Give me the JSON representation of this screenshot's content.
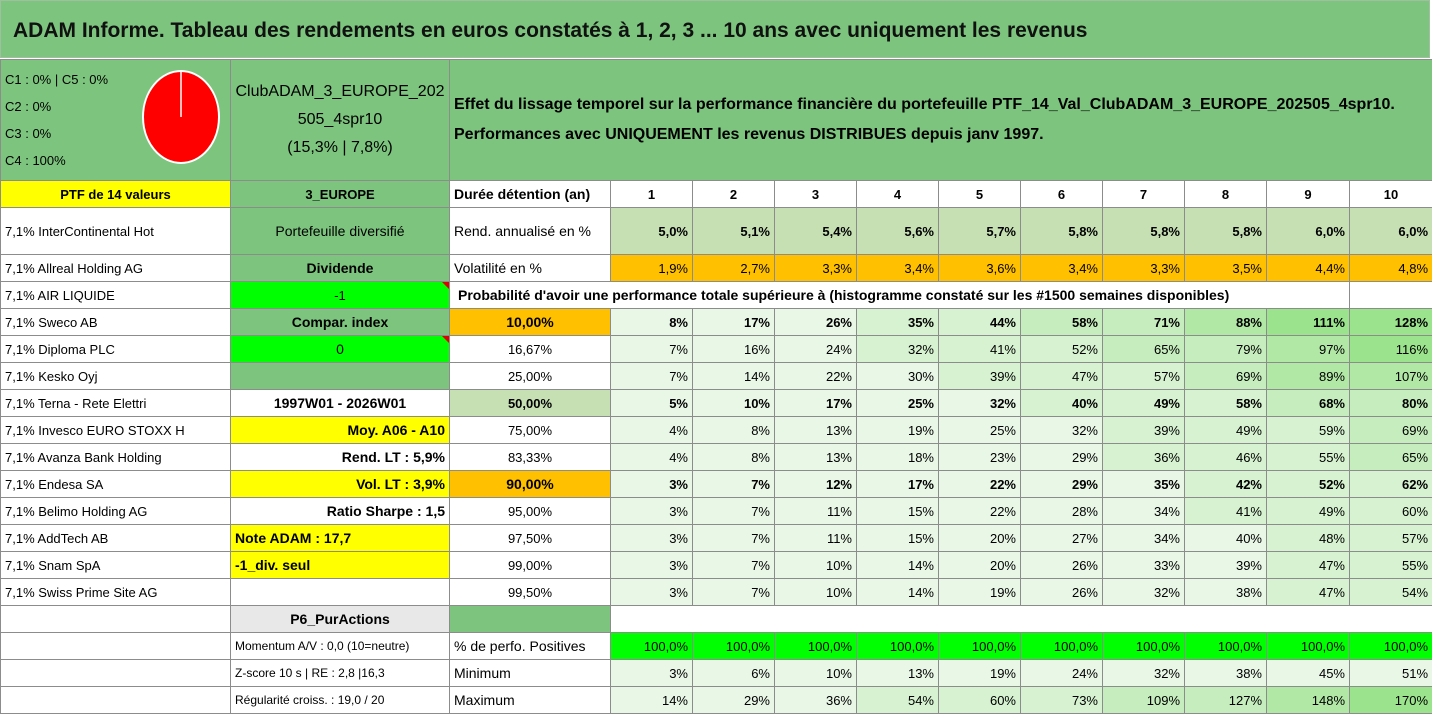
{
  "title": "ADAM Informe. Tableau des rendements en euros constatés à 1, 2, 3 ... 10 ans avec uniquement les revenus",
  "alloc": [
    "C1 : 0% | C5 : 0%",
    "C2 : 0%",
    "C3 : 0%",
    "C4 : 100%"
  ],
  "portfolio": {
    "name1": "ClubADAM_3_EUROPE_202",
    "name2": "505_4spr10",
    "stats": "(15,3% | 7,8%)"
  },
  "desc": {
    "line1": "Effet du lissage temporel sur la performance financière du portefeuille PTF_14_Val_ClubADAM_3_EUROPE_202505_4spr10.",
    "line2": "Performances avec UNIQUEMENT les revenus DISTRIBUES depuis janv 1997."
  },
  "ptf_label": "PTF de 14 valeurs",
  "region": "3_EUROPE",
  "duration_label": "Durée détention (an)",
  "years": [
    "1",
    "2",
    "3",
    "4",
    "5",
    "6",
    "7",
    "8",
    "9",
    "10"
  ],
  "holdings": [
    "7,1% InterContinental Hot",
    "7,1% Allreal Holding AG",
    "7,1% AIR LIQUIDE",
    "7,1% Sweco AB",
    "7,1% Diploma PLC",
    "7,1% Kesko Oyj",
    "7,1% Terna - Rete Elettri",
    "7,1% Invesco EURO STOXX H",
    "7,1% Avanza Bank Holding",
    "7,1% Endesa SA",
    "7,1% Belimo Holding AG",
    "7,1% AddTech AB",
    "7,1% Snam SpA",
    "7,1% Swiss Prime Site AG"
  ],
  "side": [
    "Portefeuille diversifié",
    "Dividende",
    "-1",
    "Compar. index",
    "0",
    "",
    "1997W01 - 2026W01",
    "Moy. A06 - A10",
    "Rend. LT : 5,9%",
    "Vol. LT : 3,9%",
    "Ratio Sharpe : 1,5",
    "Note ADAM : 17,7",
    "-1_div. seul",
    ""
  ],
  "rend_label": "Rend. annualisé en %",
  "rend": [
    "5,0%",
    "5,1%",
    "5,4%",
    "5,6%",
    "5,7%",
    "5,8%",
    "5,8%",
    "5,8%",
    "6,0%",
    "6,0%"
  ],
  "vol_label": "Volatilité en %",
  "vol": [
    "1,9%",
    "2,7%",
    "3,3%",
    "3,4%",
    "3,6%",
    "3,4%",
    "3,3%",
    "3,5%",
    "4,4%",
    "4,8%"
  ],
  "prob_label": "Probabilité d'avoir une performance totale supérieure à (histogramme constaté sur les #1500 semaines disponibles)",
  "prob_rows": [
    {
      "p": "10,00%",
      "v": [
        "8%",
        "17%",
        "26%",
        "35%",
        "44%",
        "58%",
        "71%",
        "88%",
        "111%",
        "128%"
      ]
    },
    {
      "p": "16,67%",
      "v": [
        "7%",
        "16%",
        "24%",
        "32%",
        "41%",
        "52%",
        "65%",
        "79%",
        "97%",
        "116%"
      ]
    },
    {
      "p": "25,00%",
      "v": [
        "7%",
        "14%",
        "22%",
        "30%",
        "39%",
        "47%",
        "57%",
        "69%",
        "89%",
        "107%"
      ]
    },
    {
      "p": "50,00%",
      "v": [
        "5%",
        "10%",
        "17%",
        "25%",
        "32%",
        "40%",
        "49%",
        "58%",
        "68%",
        "80%"
      ]
    },
    {
      "p": "75,00%",
      "v": [
        "4%",
        "8%",
        "13%",
        "19%",
        "25%",
        "32%",
        "39%",
        "49%",
        "59%",
        "69%"
      ]
    },
    {
      "p": "83,33%",
      "v": [
        "4%",
        "8%",
        "13%",
        "18%",
        "23%",
        "29%",
        "36%",
        "46%",
        "55%",
        "65%"
      ]
    },
    {
      "p": "90,00%",
      "v": [
        "3%",
        "7%",
        "12%",
        "17%",
        "22%",
        "29%",
        "35%",
        "42%",
        "52%",
        "62%"
      ]
    },
    {
      "p": "95,00%",
      "v": [
        "3%",
        "7%",
        "11%",
        "15%",
        "22%",
        "28%",
        "34%",
        "41%",
        "49%",
        "60%"
      ]
    },
    {
      "p": "97,50%",
      "v": [
        "3%",
        "7%",
        "11%",
        "15%",
        "20%",
        "27%",
        "34%",
        "40%",
        "48%",
        "57%"
      ]
    },
    {
      "p": "99,00%",
      "v": [
        "3%",
        "7%",
        "10%",
        "14%",
        "20%",
        "26%",
        "33%",
        "39%",
        "47%",
        "55%"
      ]
    },
    {
      "p": "99,50%",
      "v": [
        "3%",
        "7%",
        "10%",
        "14%",
        "19%",
        "26%",
        "32%",
        "38%",
        "47%",
        "54%"
      ]
    }
  ],
  "p6": "P6_PurActions",
  "footer": {
    "momentum": "Momentum A/V : 0,0 (10=neutre)",
    "zscore": "Z-score 10 s | RE : 2,8 |16,3",
    "regularite": "Régularité croiss. : 19,0 / 20",
    "pos_label": "% de perfo. Positives",
    "pos": [
      "100,0%",
      "100,0%",
      "100,0%",
      "100,0%",
      "100,0%",
      "100,0%",
      "100,0%",
      "100,0%",
      "100,0%",
      "100,0%"
    ],
    "min_label": "Minimum",
    "min": [
      "3%",
      "6%",
      "10%",
      "13%",
      "19%",
      "24%",
      "32%",
      "38%",
      "45%",
      "51%"
    ],
    "max_label": "Maximum",
    "max": [
      "14%",
      "29%",
      "36%",
      "54%",
      "60%",
      "73%",
      "109%",
      "127%",
      "148%",
      "170%"
    ]
  },
  "colors": {
    "title_green": "#7dc57e",
    "yellow": "#ffff00",
    "orange": "#ffc000",
    "bright_green": "#00ff00",
    "red": "#e00000",
    "pie_red": "#ff0000"
  }
}
